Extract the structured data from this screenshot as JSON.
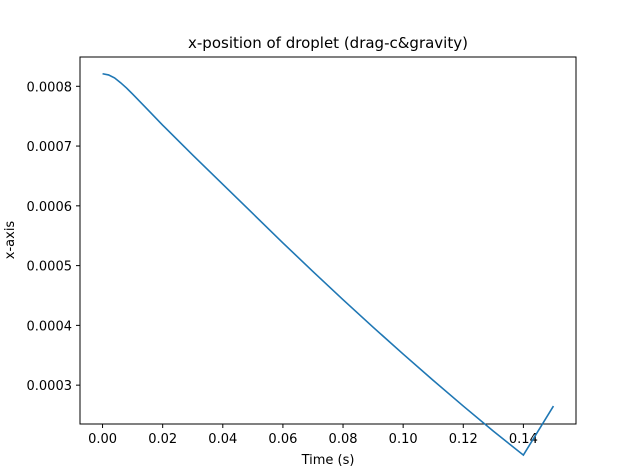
{
  "chart_data": {
    "type": "line",
    "title": "x-position of droplet (drag-c&gravity)",
    "xlabel": "Time (s)",
    "ylabel": "x-axis",
    "xlim": [
      -0.0075,
      0.1575
    ],
    "ylim": [
      0.000235,
      0.000849
    ],
    "x_ticks": [
      0.0,
      0.02,
      0.04,
      0.06,
      0.08,
      0.1,
      0.12,
      0.14
    ],
    "x_tick_labels": [
      "0.00",
      "0.02",
      "0.04",
      "0.06",
      "0.08",
      "0.10",
      "0.12",
      "0.14"
    ],
    "y_ticks": [
      0.0003,
      0.0004,
      0.0005,
      0.0006,
      0.0007,
      0.0008
    ],
    "y_tick_labels": [
      "0.0003",
      "0.0004",
      "0.0005",
      "0.0006",
      "0.0007",
      "0.0008"
    ],
    "series": [
      {
        "name": "x-position",
        "color": "#1f77b4",
        "x": [
          0.0,
          0.002,
          0.004,
          0.006,
          0.008,
          0.01,
          0.015,
          0.02,
          0.03,
          0.04,
          0.05,
          0.06,
          0.07,
          0.08,
          0.09,
          0.1,
          0.11,
          0.12,
          0.13,
          0.14,
          0.15
        ],
        "y": [
          0.000821,
          0.000819,
          0.000814,
          0.000806,
          0.000797,
          0.000787,
          0.000761,
          0.000735,
          0.000685,
          0.000636,
          0.000587,
          0.000538,
          0.00049,
          0.000443,
          0.000397,
          0.000352,
          0.000308,
          0.000265,
          0.000223,
          0.000183,
          0.000265
        ]
      }
    ]
  }
}
